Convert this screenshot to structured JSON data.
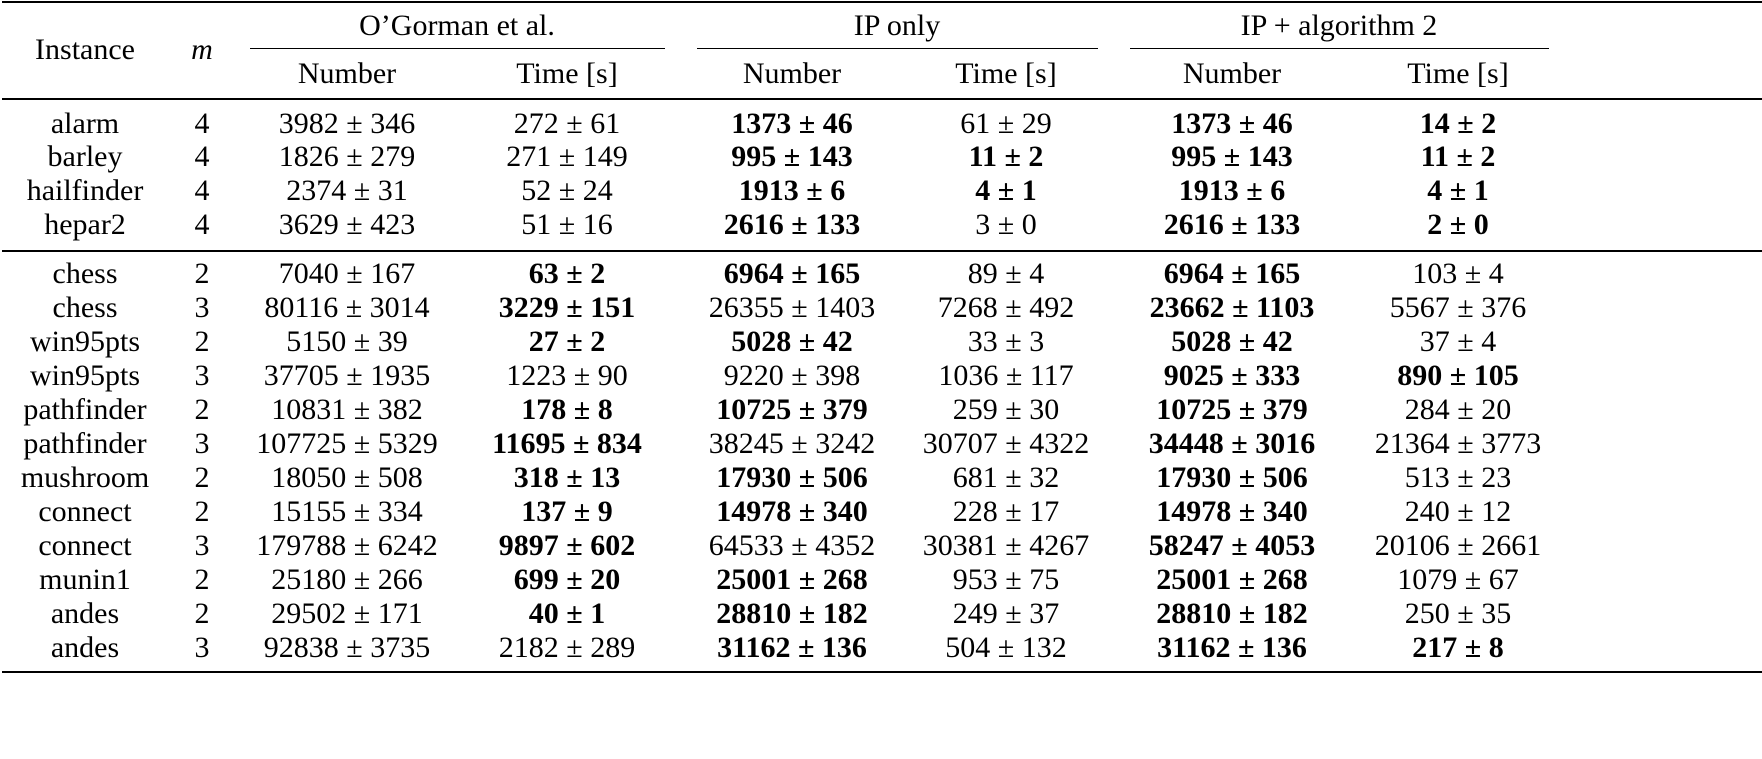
{
  "header": {
    "instance": "Instance",
    "m": "m",
    "groups": [
      "O’Gorman et al.",
      "IP only",
      "IP + algorithm 2"
    ],
    "sub": [
      "Number",
      "Time [s]"
    ]
  },
  "rows": [
    {
      "instance": "alarm",
      "m": "4",
      "cells": [
        {
          "t": "3982 ± 346",
          "b": false
        },
        {
          "t": "272 ± 61",
          "b": false
        },
        {
          "t": "1373 ± 46",
          "b": true
        },
        {
          "t": "61 ± 29",
          "b": false
        },
        {
          "t": "1373 ± 46",
          "b": true
        },
        {
          "t": "14 ± 2",
          "b": true
        }
      ]
    },
    {
      "instance": "barley",
      "m": "4",
      "cells": [
        {
          "t": "1826 ± 279",
          "b": false
        },
        {
          "t": "271 ± 149",
          "b": false
        },
        {
          "t": "995 ± 143",
          "b": true
        },
        {
          "t": "11 ± 2",
          "b": true
        },
        {
          "t": "995 ± 143",
          "b": true
        },
        {
          "t": "11 ± 2",
          "b": true
        }
      ]
    },
    {
      "instance": "hailfinder",
      "m": "4",
      "cells": [
        {
          "t": "2374 ± 31",
          "b": false
        },
        {
          "t": "52 ± 24",
          "b": false
        },
        {
          "t": "1913 ± 6",
          "b": true
        },
        {
          "t": "4 ± 1",
          "b": true
        },
        {
          "t": "1913 ± 6",
          "b": true
        },
        {
          "t": "4 ± 1",
          "b": true
        }
      ]
    },
    {
      "instance": "hepar2",
      "m": "4",
      "cells": [
        {
          "t": "3629 ± 423",
          "b": false
        },
        {
          "t": "51 ± 16",
          "b": false
        },
        {
          "t": "2616 ± 133",
          "b": true
        },
        {
          "t": "3 ± 0",
          "b": false
        },
        {
          "t": "2616 ± 133",
          "b": true
        },
        {
          "t": "2 ± 0",
          "b": true
        }
      ]
    },
    {
      "instance": "chess",
      "m": "2",
      "cells": [
        {
          "t": "7040 ± 167",
          "b": false
        },
        {
          "t": "63 ± 2",
          "b": true
        },
        {
          "t": "6964 ± 165",
          "b": true
        },
        {
          "t": "89 ± 4",
          "b": false
        },
        {
          "t": "6964 ± 165",
          "b": true
        },
        {
          "t": "103 ± 4",
          "b": false
        }
      ]
    },
    {
      "instance": "chess",
      "m": "3",
      "cells": [
        {
          "t": "80116 ± 3014",
          "b": false
        },
        {
          "t": "3229 ± 151",
          "b": true
        },
        {
          "t": "26355 ± 1403",
          "b": false
        },
        {
          "t": "7268 ± 492",
          "b": false
        },
        {
          "t": "23662 ± 1103",
          "b": true
        },
        {
          "t": "5567 ± 376",
          "b": false
        }
      ]
    },
    {
      "instance": "win95pts",
      "m": "2",
      "cells": [
        {
          "t": "5150 ± 39",
          "b": false
        },
        {
          "t": "27 ± 2",
          "b": true
        },
        {
          "t": "5028 ± 42",
          "b": true
        },
        {
          "t": "33 ± 3",
          "b": false
        },
        {
          "t": "5028 ± 42",
          "b": true
        },
        {
          "t": "37 ± 4",
          "b": false
        }
      ]
    },
    {
      "instance": "win95pts",
      "m": "3",
      "cells": [
        {
          "t": "37705 ± 1935",
          "b": false
        },
        {
          "t": "1223 ± 90",
          "b": false
        },
        {
          "t": "9220 ± 398",
          "b": false
        },
        {
          "t": "1036 ± 117",
          "b": false
        },
        {
          "t": "9025 ± 333",
          "b": true
        },
        {
          "t": "890 ± 105",
          "b": true
        }
      ]
    },
    {
      "instance": "pathfinder",
      "m": "2",
      "cells": [
        {
          "t": "10831 ± 382",
          "b": false
        },
        {
          "t": "178 ± 8",
          "b": true
        },
        {
          "t": "10725 ± 379",
          "b": true
        },
        {
          "t": "259 ± 30",
          "b": false
        },
        {
          "t": "10725 ± 379",
          "b": true
        },
        {
          "t": "284 ± 20",
          "b": false
        }
      ]
    },
    {
      "instance": "pathfinder",
      "m": "3",
      "cells": [
        {
          "t": "107725 ± 5329",
          "b": false
        },
        {
          "t": "11695 ± 834",
          "b": true
        },
        {
          "t": "38245 ± 3242",
          "b": false
        },
        {
          "t": "30707 ± 4322",
          "b": false
        },
        {
          "t": "34448 ± 3016",
          "b": true
        },
        {
          "t": "21364 ± 3773",
          "b": false
        }
      ]
    },
    {
      "instance": "mushroom",
      "m": "2",
      "cells": [
        {
          "t": "18050 ± 508",
          "b": false
        },
        {
          "t": "318 ± 13",
          "b": true
        },
        {
          "t": "17930 ± 506",
          "b": true
        },
        {
          "t": "681 ± 32",
          "b": false
        },
        {
          "t": "17930 ± 506",
          "b": true
        },
        {
          "t": "513 ± 23",
          "b": false
        }
      ]
    },
    {
      "instance": "connect",
      "m": "2",
      "cells": [
        {
          "t": "15155 ± 334",
          "b": false
        },
        {
          "t": "137 ± 9",
          "b": true
        },
        {
          "t": "14978 ± 340",
          "b": true
        },
        {
          "t": "228 ± 17",
          "b": false
        },
        {
          "t": "14978 ± 340",
          "b": true
        },
        {
          "t": "240 ± 12",
          "b": false
        }
      ]
    },
    {
      "instance": "connect",
      "m": "3",
      "cells": [
        {
          "t": "179788 ± 6242",
          "b": false
        },
        {
          "t": "9897 ± 602",
          "b": true
        },
        {
          "t": "64533 ± 4352",
          "b": false
        },
        {
          "t": "30381 ± 4267",
          "b": false
        },
        {
          "t": "58247 ± 4053",
          "b": true
        },
        {
          "t": "20106 ± 2661",
          "b": false
        }
      ]
    },
    {
      "instance": "munin1",
      "m": "2",
      "cells": [
        {
          "t": "25180 ± 266",
          "b": false
        },
        {
          "t": "699 ± 20",
          "b": true
        },
        {
          "t": "25001 ± 268",
          "b": true
        },
        {
          "t": "953 ± 75",
          "b": false
        },
        {
          "t": "25001 ± 268",
          "b": true
        },
        {
          "t": "1079 ± 67",
          "b": false
        }
      ]
    },
    {
      "instance": "andes",
      "m": "2",
      "cells": [
        {
          "t": "29502 ± 171",
          "b": false
        },
        {
          "t": "40 ± 1",
          "b": true
        },
        {
          "t": "28810 ± 182",
          "b": true
        },
        {
          "t": "249 ± 37",
          "b": false
        },
        {
          "t": "28810 ± 182",
          "b": true
        },
        {
          "t": "250 ± 35",
          "b": false
        }
      ]
    },
    {
      "instance": "andes",
      "m": "3",
      "cells": [
        {
          "t": "92838 ± 3735",
          "b": false
        },
        {
          "t": "2182 ± 289",
          "b": false
        },
        {
          "t": "31162 ± 136",
          "b": true
        },
        {
          "t": "504 ± 132",
          "b": false
        },
        {
          "t": "31162 ± 136",
          "b": true
        },
        {
          "t": "217 ± 8",
          "b": true
        }
      ]
    }
  ]
}
